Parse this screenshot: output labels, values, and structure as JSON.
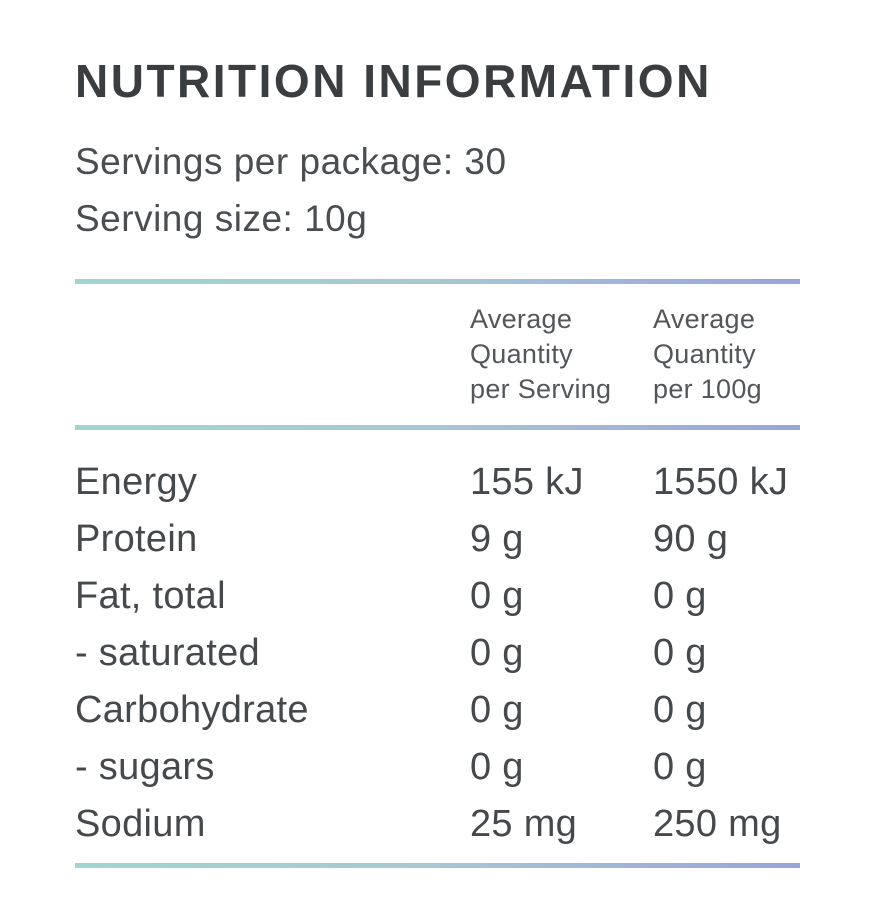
{
  "panel": {
    "title": "NUTRITION INFORMATION",
    "servings_per_package": "Servings per package: 30",
    "serving_size": "Serving size: 10g"
  },
  "table": {
    "col_headers": [
      "Average\nQuantity\nper Serving",
      "Average\nQuantity\nper 100g"
    ],
    "rows": [
      {
        "label": "Energy",
        "per_serving": "155 kJ",
        "per_100g": "1550 kJ"
      },
      {
        "label": "Protein",
        "per_serving": "9 g",
        "per_100g": "90 g"
      },
      {
        "label": "Fat, total",
        "per_serving": "0 g",
        "per_100g": "0 g"
      },
      {
        "label": "- saturated",
        "per_serving": "0 g",
        "per_100g": "0 g"
      },
      {
        "label": "Carbohydrate",
        "per_serving": "0 g",
        "per_100g": "0 g"
      },
      {
        "label": "- sugars",
        "per_serving": "0 g",
        "per_100g": "0 g"
      },
      {
        "label": "Sodium",
        "per_serving": "25 mg",
        "per_100g": "250 mg"
      }
    ]
  },
  "colors": {
    "title_text": "#3a3e41",
    "body_text": "#46494c",
    "header_text": "#54575a",
    "divider_gradient_start": "#9fd6cf",
    "divider_gradient_end": "#97a5da"
  }
}
